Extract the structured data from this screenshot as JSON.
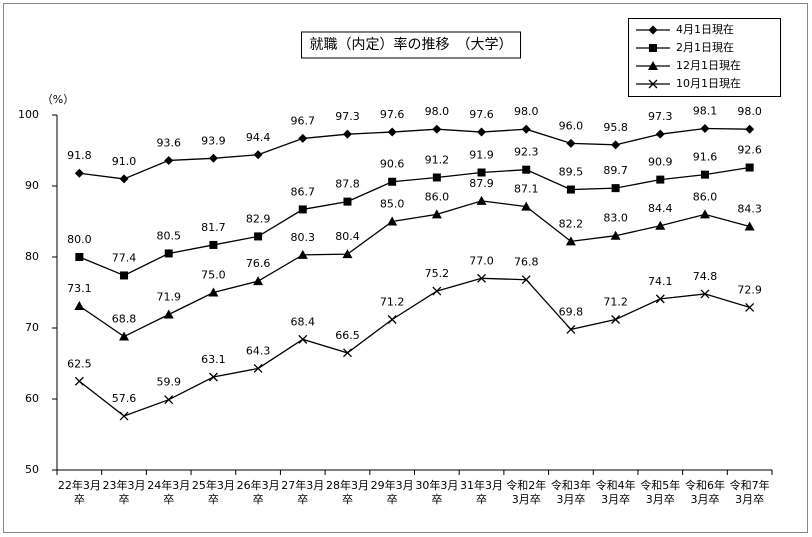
{
  "chart_data": {
    "type": "line",
    "title": "就職（内定）率の推移　（大学）",
    "y_unit": "（%）",
    "categories": [
      "22年3月\n卒",
      "23年3月\n卒",
      "24年3月\n卒",
      "25年3月\n卒",
      "26年3月\n卒",
      "27年3月\n卒",
      "28年3月\n卒",
      "29年3月\n卒",
      "30年3月\n卒",
      "31年3月\n卒",
      "令和2年\n3月卒",
      "令和3年\n3月卒",
      "令和4年\n3月卒",
      "令和5年\n3月卒",
      "令和6年\n3月卒",
      "令和7年\n3月卒"
    ],
    "series": [
      {
        "name": "4月1日現在",
        "color": "#000000",
        "marker": "diamond",
        "values": [
          91.8,
          91.0,
          93.6,
          93.9,
          94.4,
          96.7,
          97.3,
          97.6,
          98.0,
          97.6,
          98.0,
          96.0,
          95.8,
          97.3,
          98.1,
          98.0
        ],
        "value_labels": [
          "91.8",
          "91.0",
          "93.6",
          "93.9",
          "94.4",
          "96.7",
          "97.3",
          "97.6",
          "98.0",
          "97.6",
          "98.0",
          "96.0",
          "95.8",
          "97.3",
          "98.1",
          "98.0"
        ]
      },
      {
        "name": "2月1日現在",
        "color": "#000000",
        "marker": "square",
        "values": [
          80.0,
          77.4,
          80.5,
          81.7,
          82.9,
          86.7,
          87.8,
          90.6,
          91.2,
          91.9,
          92.3,
          89.5,
          89.7,
          90.9,
          91.6,
          92.6
        ],
        "value_labels": [
          "80.0",
          "77.4",
          "80.5",
          "81.7",
          "82.9",
          "86.7",
          "87.8",
          "90.6",
          "91.2",
          "91.9",
          "92.3",
          "89.5",
          "89.7",
          "90.9",
          "91.6",
          "92.6"
        ]
      },
      {
        "name": "12月1日現在",
        "color": "#000000",
        "marker": "triangle",
        "values": [
          73.1,
          68.8,
          71.9,
          75.0,
          76.6,
          80.3,
          80.4,
          85.0,
          86.0,
          87.9,
          87.1,
          82.2,
          83.0,
          84.4,
          86.0,
          84.3
        ],
        "value_labels": [
          "73.1",
          "68.8",
          "71.9",
          "75.0",
          "76.6",
          "80.3",
          "80.4",
          "85.0",
          "86.0",
          "87.9",
          "87.1",
          "82.2",
          "83.0",
          "84.4",
          "86.0",
          "84.3"
        ]
      },
      {
        "name": "10月1日現在",
        "color": "#000000",
        "marker": "x",
        "values": [
          62.5,
          57.6,
          59.9,
          63.1,
          64.3,
          68.4,
          66.5,
          71.2,
          75.2,
          77.0,
          76.8,
          69.8,
          71.2,
          74.1,
          74.8,
          72.9
        ],
        "value_labels": [
          "62.5",
          "57.6",
          "59.9",
          "63.1",
          "64.3",
          "68.4",
          "66.5",
          "71.2",
          "75.2",
          "77.0",
          "76.8",
          "69.8",
          "71.2",
          "74.1",
          "74.8",
          "72.9"
        ]
      }
    ],
    "ylim": [
      50,
      100
    ],
    "yticks": [
      50,
      60,
      70,
      80,
      90,
      100
    ],
    "grid": false,
    "legend": "top-right"
  }
}
